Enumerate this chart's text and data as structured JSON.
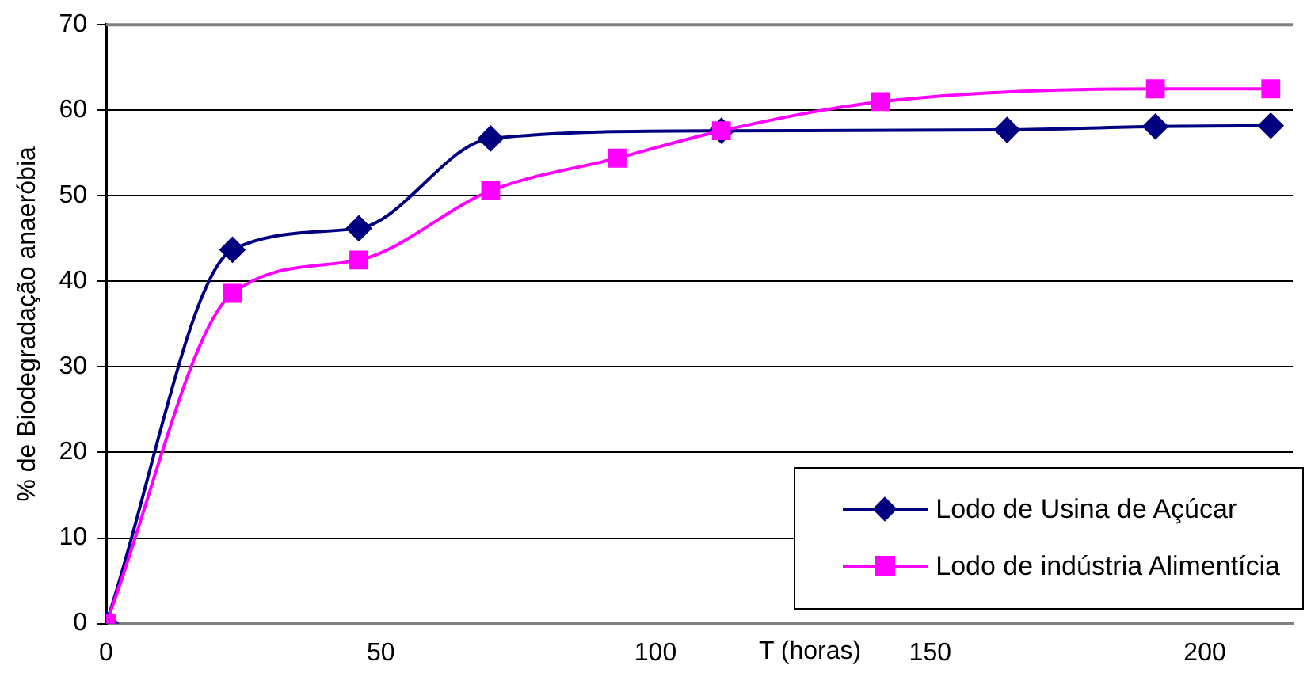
{
  "chart_data": {
    "type": "line",
    "xlabel": "T (horas)",
    "ylabel": "% de Biodegradação anaeróbia",
    "xlim": [
      0,
      216
    ],
    "xticks": [
      0,
      50,
      100,
      150,
      200
    ],
    "ylim": [
      0,
      70
    ],
    "yticks": [
      0,
      10,
      20,
      30,
      40,
      50,
      60,
      70
    ],
    "grid": "y",
    "legend": "bottom right",
    "line_style": "solid",
    "series": [
      {
        "name": "Lodo de Usina de Açúcar",
        "color": "#000080",
        "marker": "diamond",
        "x": [
          0,
          23,
          46,
          70,
          112,
          164,
          191,
          212
        ],
        "values": [
          0,
          43.7,
          46.2,
          56.7,
          57.6,
          57.7,
          58.1,
          58.2
        ]
      },
      {
        "name": "Lodo de indústria Alimentícia",
        "color": "#ff00ff",
        "marker": "square",
        "x": [
          0,
          23,
          46,
          70,
          93,
          112,
          141,
          191,
          212
        ],
        "values": [
          0,
          38.6,
          42.5,
          50.6,
          54.4,
          57.6,
          61.0,
          62.5,
          62.5
        ]
      }
    ]
  }
}
